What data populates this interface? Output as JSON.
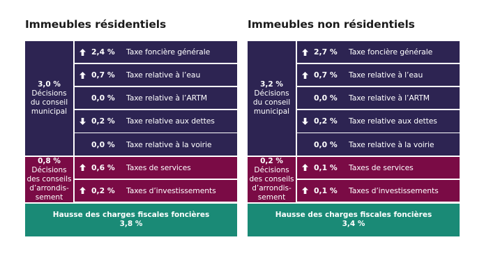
{
  "colors": {
    "council_bg": "#2d2452",
    "borough_bg": "#7a0b45",
    "total_bg": "#1a8a76"
  },
  "panels": [
    {
      "title": "Immeubles résidentiels",
      "council": {
        "pct": "3,0 %",
        "label": "Décisions du conseil municipal",
        "rows": [
          {
            "arrow": "up-arrow-icon",
            "value": "2,4 %",
            "name": "Taxe foncière générale"
          },
          {
            "arrow": "up-arrow-icon",
            "value": "0,7 %",
            "name": "Taxe relative à l’eau"
          },
          {
            "arrow": "",
            "value": "0,0 %",
            "name": "Taxe relative à l’ARTM"
          },
          {
            "arrow": "down-arrow-icon",
            "value": "0,2 %",
            "name": "Taxe relative aux dettes"
          },
          {
            "arrow": "",
            "value": "0,0 %",
            "name": "Taxe relative à la voirie"
          }
        ]
      },
      "borough": {
        "pct": "0,8 %",
        "label": "Décisions des conseils d’arrondis-sement",
        "rows": [
          {
            "arrow": "up-arrow-icon",
            "value": "0,6 %",
            "name": "Taxes de services"
          },
          {
            "arrow": "up-arrow-icon",
            "value": "0,2 %",
            "name": "Taxes d’investissements"
          }
        ]
      },
      "total": {
        "label": "Hausse des charges fiscales foncières",
        "value": "3,8 %"
      }
    },
    {
      "title": "Immeubles non résidentiels",
      "council": {
        "pct": "3,2 %",
        "label": "Décisions du conseil municipal",
        "rows": [
          {
            "arrow": "up-arrow-icon",
            "value": "2,7 %",
            "name": "Taxe foncière générale"
          },
          {
            "arrow": "up-arrow-icon",
            "value": "0,7 %",
            "name": "Taxe relative à l’eau"
          },
          {
            "arrow": "",
            "value": "0,0 %",
            "name": "Taxe relative à l’ARTM"
          },
          {
            "arrow": "down-arrow-icon",
            "value": "0,2 %",
            "name": "Taxe relative aux dettes"
          },
          {
            "arrow": "",
            "value": "0,0 %",
            "name": "Taxe relative à la voirie"
          }
        ]
      },
      "borough": {
        "pct": "0,2 %",
        "label": "Décisions des conseils d’arrondis-sement",
        "rows": [
          {
            "arrow": "up-arrow-icon",
            "value": "0,1 %",
            "name": "Taxes de services"
          },
          {
            "arrow": "up-arrow-icon",
            "value": "0,1 %",
            "name": "Taxes d’investissements"
          }
        ]
      },
      "total": {
        "label": "Hausse des charges fiscales foncières",
        "value": "3,4 %"
      }
    }
  ]
}
